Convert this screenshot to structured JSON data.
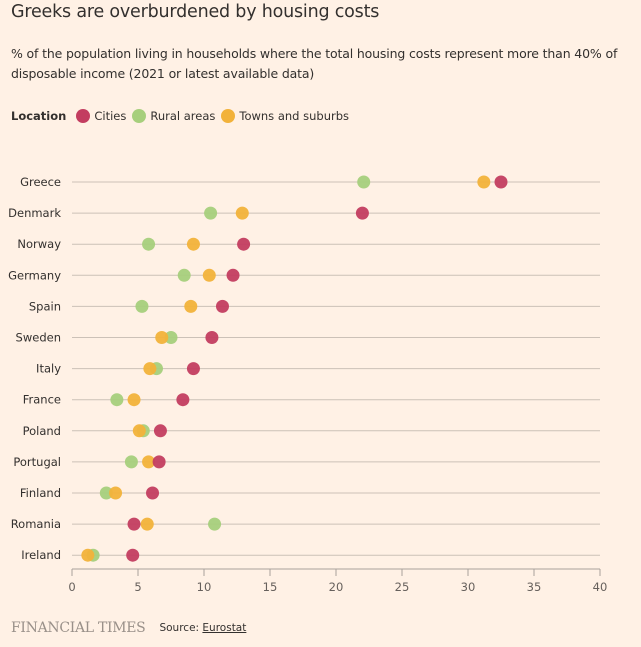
{
  "header": {
    "title": "Greeks are overburdened by housing costs",
    "subtitle": "% of the population living in households where the total housing costs represent more than 40% of disposable income (2021 or latest available data)"
  },
  "legend": {
    "title": "Location",
    "items": [
      {
        "label": "Cities",
        "color": "#c33d60"
      },
      {
        "label": "Rural areas",
        "color": "#a7cf7c"
      },
      {
        "label": "Towns and suburbs",
        "color": "#f2b23a"
      }
    ]
  },
  "footer": {
    "logo": "FINANCIAL TIMES",
    "source_prefix": "Source: ",
    "source_link": "Eurostat"
  },
  "chart_data": {
    "type": "scatter",
    "subtype": "dot-plot",
    "title": "Greeks are overburdened by housing costs",
    "subtitle": "% of the population living in households where the total housing costs represent more than 40% of disposable income (2021 or latest available data)",
    "xlabel": "",
    "ylabel": "",
    "xlim": [
      0,
      40
    ],
    "x_ticks": [
      0,
      5,
      10,
      15,
      20,
      25,
      30,
      35,
      40
    ],
    "grid": true,
    "legend_position": "top-left",
    "categories": [
      "Greece",
      "Denmark",
      "Norway",
      "Germany",
      "Spain",
      "Sweden",
      "Italy",
      "France",
      "Poland",
      "Portugal",
      "Finland",
      "Romania",
      "Ireland"
    ],
    "series": [
      {
        "name": "Cities",
        "color": "#c33d60",
        "values": [
          32.5,
          22.0,
          13.0,
          12.2,
          11.4,
          10.6,
          9.2,
          8.4,
          6.7,
          6.6,
          6.1,
          4.7,
          4.6
        ]
      },
      {
        "name": "Rural areas",
        "color": "#a7cf7c",
        "values": [
          22.1,
          10.5,
          5.8,
          8.5,
          5.3,
          7.5,
          6.4,
          3.4,
          5.4,
          4.5,
          2.6,
          10.8,
          1.6
        ]
      },
      {
        "name": "Towns and suburbs",
        "color": "#f2b23a",
        "values": [
          31.2,
          12.9,
          9.2,
          10.4,
          9.0,
          6.8,
          5.9,
          4.7,
          5.1,
          5.8,
          3.3,
          5.7,
          1.2
        ]
      }
    ]
  }
}
